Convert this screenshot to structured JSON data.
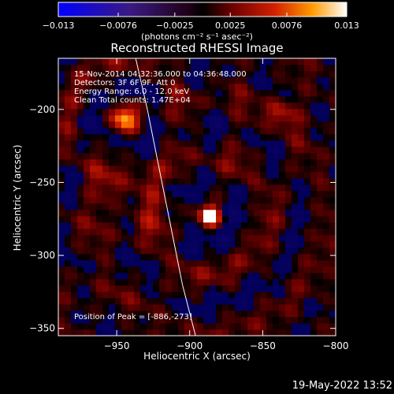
{
  "chart_data": {
    "type": "heatmap",
    "title": "Reconstructed RHESSI Image",
    "xlabel": "Heliocentric X (arcsec)",
    "ylabel": "Heliocentric Y (arcsec)",
    "xlim": [
      -990,
      -800
    ],
    "ylim": [
      -355,
      -165
    ],
    "xticks": [
      -950,
      -900,
      -850,
      -800
    ],
    "yticks": [
      -200,
      -250,
      -300,
      -350
    ],
    "colorbar": {
      "min": -0.013,
      "max": 0.013,
      "ticks": [
        -0.013,
        -0.0076,
        -0.0025,
        0.0025,
        0.0076,
        0.013
      ],
      "tick_labels": [
        "−0.013",
        "−0.0076",
        "−0.0025",
        "0.0025",
        "0.0076",
        "0.013"
      ],
      "unit_label": "(photons cm⁻² s⁻¹ asec⁻²)"
    },
    "sources": [
      {
        "x": -886,
        "y": -273,
        "amplitude": 0.013,
        "sigma": 4
      },
      {
        "x": -945,
        "y": -205,
        "amplitude": 0.0068,
        "sigma": 7
      },
      {
        "x": -838,
        "y": -203,
        "amplitude": 0.0045,
        "sigma": 7
      },
      {
        "x": -928,
        "y": -265,
        "amplitude": 0.0032,
        "sigma": 10
      },
      {
        "x": -955,
        "y": -258,
        "amplitude": 0.003,
        "sigma": 10
      }
    ],
    "limb_curve": [
      [
        -937,
        -165
      ],
      [
        -929,
        -200
      ],
      [
        -921,
        -240
      ],
      [
        -913,
        -280
      ],
      [
        -905,
        -320
      ],
      [
        -896,
        -355
      ]
    ],
    "peak_position": [
      -886,
      -273
    ]
  },
  "annotations": {
    "time_range": "15-Nov-2014 04:32:36.000 to 04:36:48.000",
    "detectors": "Detectors: 3F 6F 9F, Att 0",
    "energy_range": "Energy Range: 6.0 - 12.0 keV",
    "method_counts": "Clean      Total counts: 1.47E+04",
    "peak": "Position of Peak = [-886,-273]"
  },
  "footer": {
    "date": "19-May-2022 13:52"
  }
}
